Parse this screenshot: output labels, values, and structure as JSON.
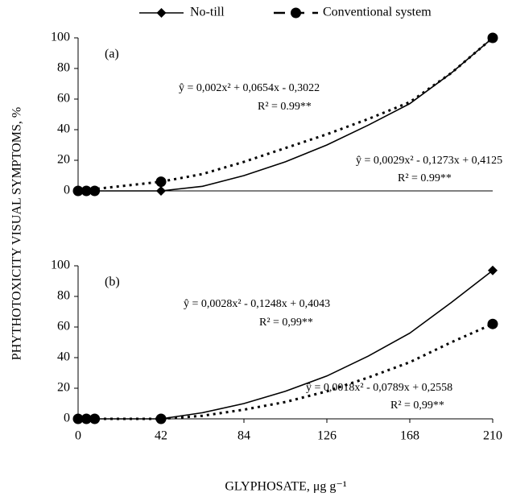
{
  "chart_data": [
    {
      "type": "line",
      "label": "(a)",
      "ylabel": "PHYTHOTOXICITY VISUAL SYMPTOMS, %",
      "x": [
        0,
        4.2,
        8.4,
        42,
        210
      ],
      "series": [
        {
          "name": "No-till",
          "color": "#000000",
          "marker": "diamond",
          "dash": "solid",
          "values": [
            0,
            0,
            0,
            0,
            100
          ],
          "fit_values": [
            0,
            0,
            3,
            10,
            19,
            30,
            43,
            57,
            77,
            100
          ]
        },
        {
          "name": "Conventional system",
          "color": "#000000",
          "marker": "circle",
          "dash": "dotted",
          "values": [
            0,
            0,
            0,
            6,
            100
          ],
          "fit_values": [
            0,
            6,
            11,
            19,
            28,
            37,
            47,
            58,
            77,
            100
          ]
        }
      ],
      "fit_x": [
        0,
        42,
        63,
        84,
        105,
        126,
        147,
        168,
        189,
        210
      ],
      "annotations": [
        "ŷ = 0,002x² + 0,0654x - 0,3022",
        "R² = 0.99**",
        "ŷ = 0,0029x² - 0,1273x + 0,4125",
        "R² = 0.99**"
      ],
      "xlim": [
        0,
        210
      ],
      "ylim": [
        0,
        100
      ],
      "yticks": [
        0,
        20,
        40,
        60,
        80,
        100
      ]
    },
    {
      "type": "line",
      "label": "(b)",
      "xlabel": "GLYPHOSATE, μg g⁻¹",
      "x": [
        0,
        4.2,
        8.4,
        42,
        210
      ],
      "series": [
        {
          "color": "#000000",
          "marker": "diamond",
          "dash": "solid",
          "values": [
            0,
            0,
            0,
            0,
            97
          ],
          "fit_values": [
            0,
            0,
            4,
            10,
            18,
            28,
            41,
            56,
            76,
            97
          ]
        },
        {
          "color": "#000000",
          "marker": "circle",
          "dash": "dotted",
          "values": [
            0,
            0,
            0,
            0,
            62
          ],
          "fit_values": [
            0,
            0,
            2,
            6,
            11,
            18,
            27,
            37,
            50,
            62
          ]
        }
      ],
      "fit_x": [
        0,
        42,
        63,
        84,
        105,
        126,
        147,
        168,
        189,
        210
      ],
      "annotations": [
        "ŷ = 0,0028x² - 0,1248x + 0,4043",
        "R² = 0,99**",
        "ŷ = 0,0018x² - 0,0789x + 0,2558",
        "R² = 0,99**"
      ],
      "xlim": [
        0,
        210
      ],
      "ylim": [
        0,
        100
      ],
      "yticks": [
        0,
        20,
        40,
        60,
        80,
        100
      ],
      "xticks": [
        0,
        42,
        84,
        126,
        168,
        210
      ]
    }
  ]
}
